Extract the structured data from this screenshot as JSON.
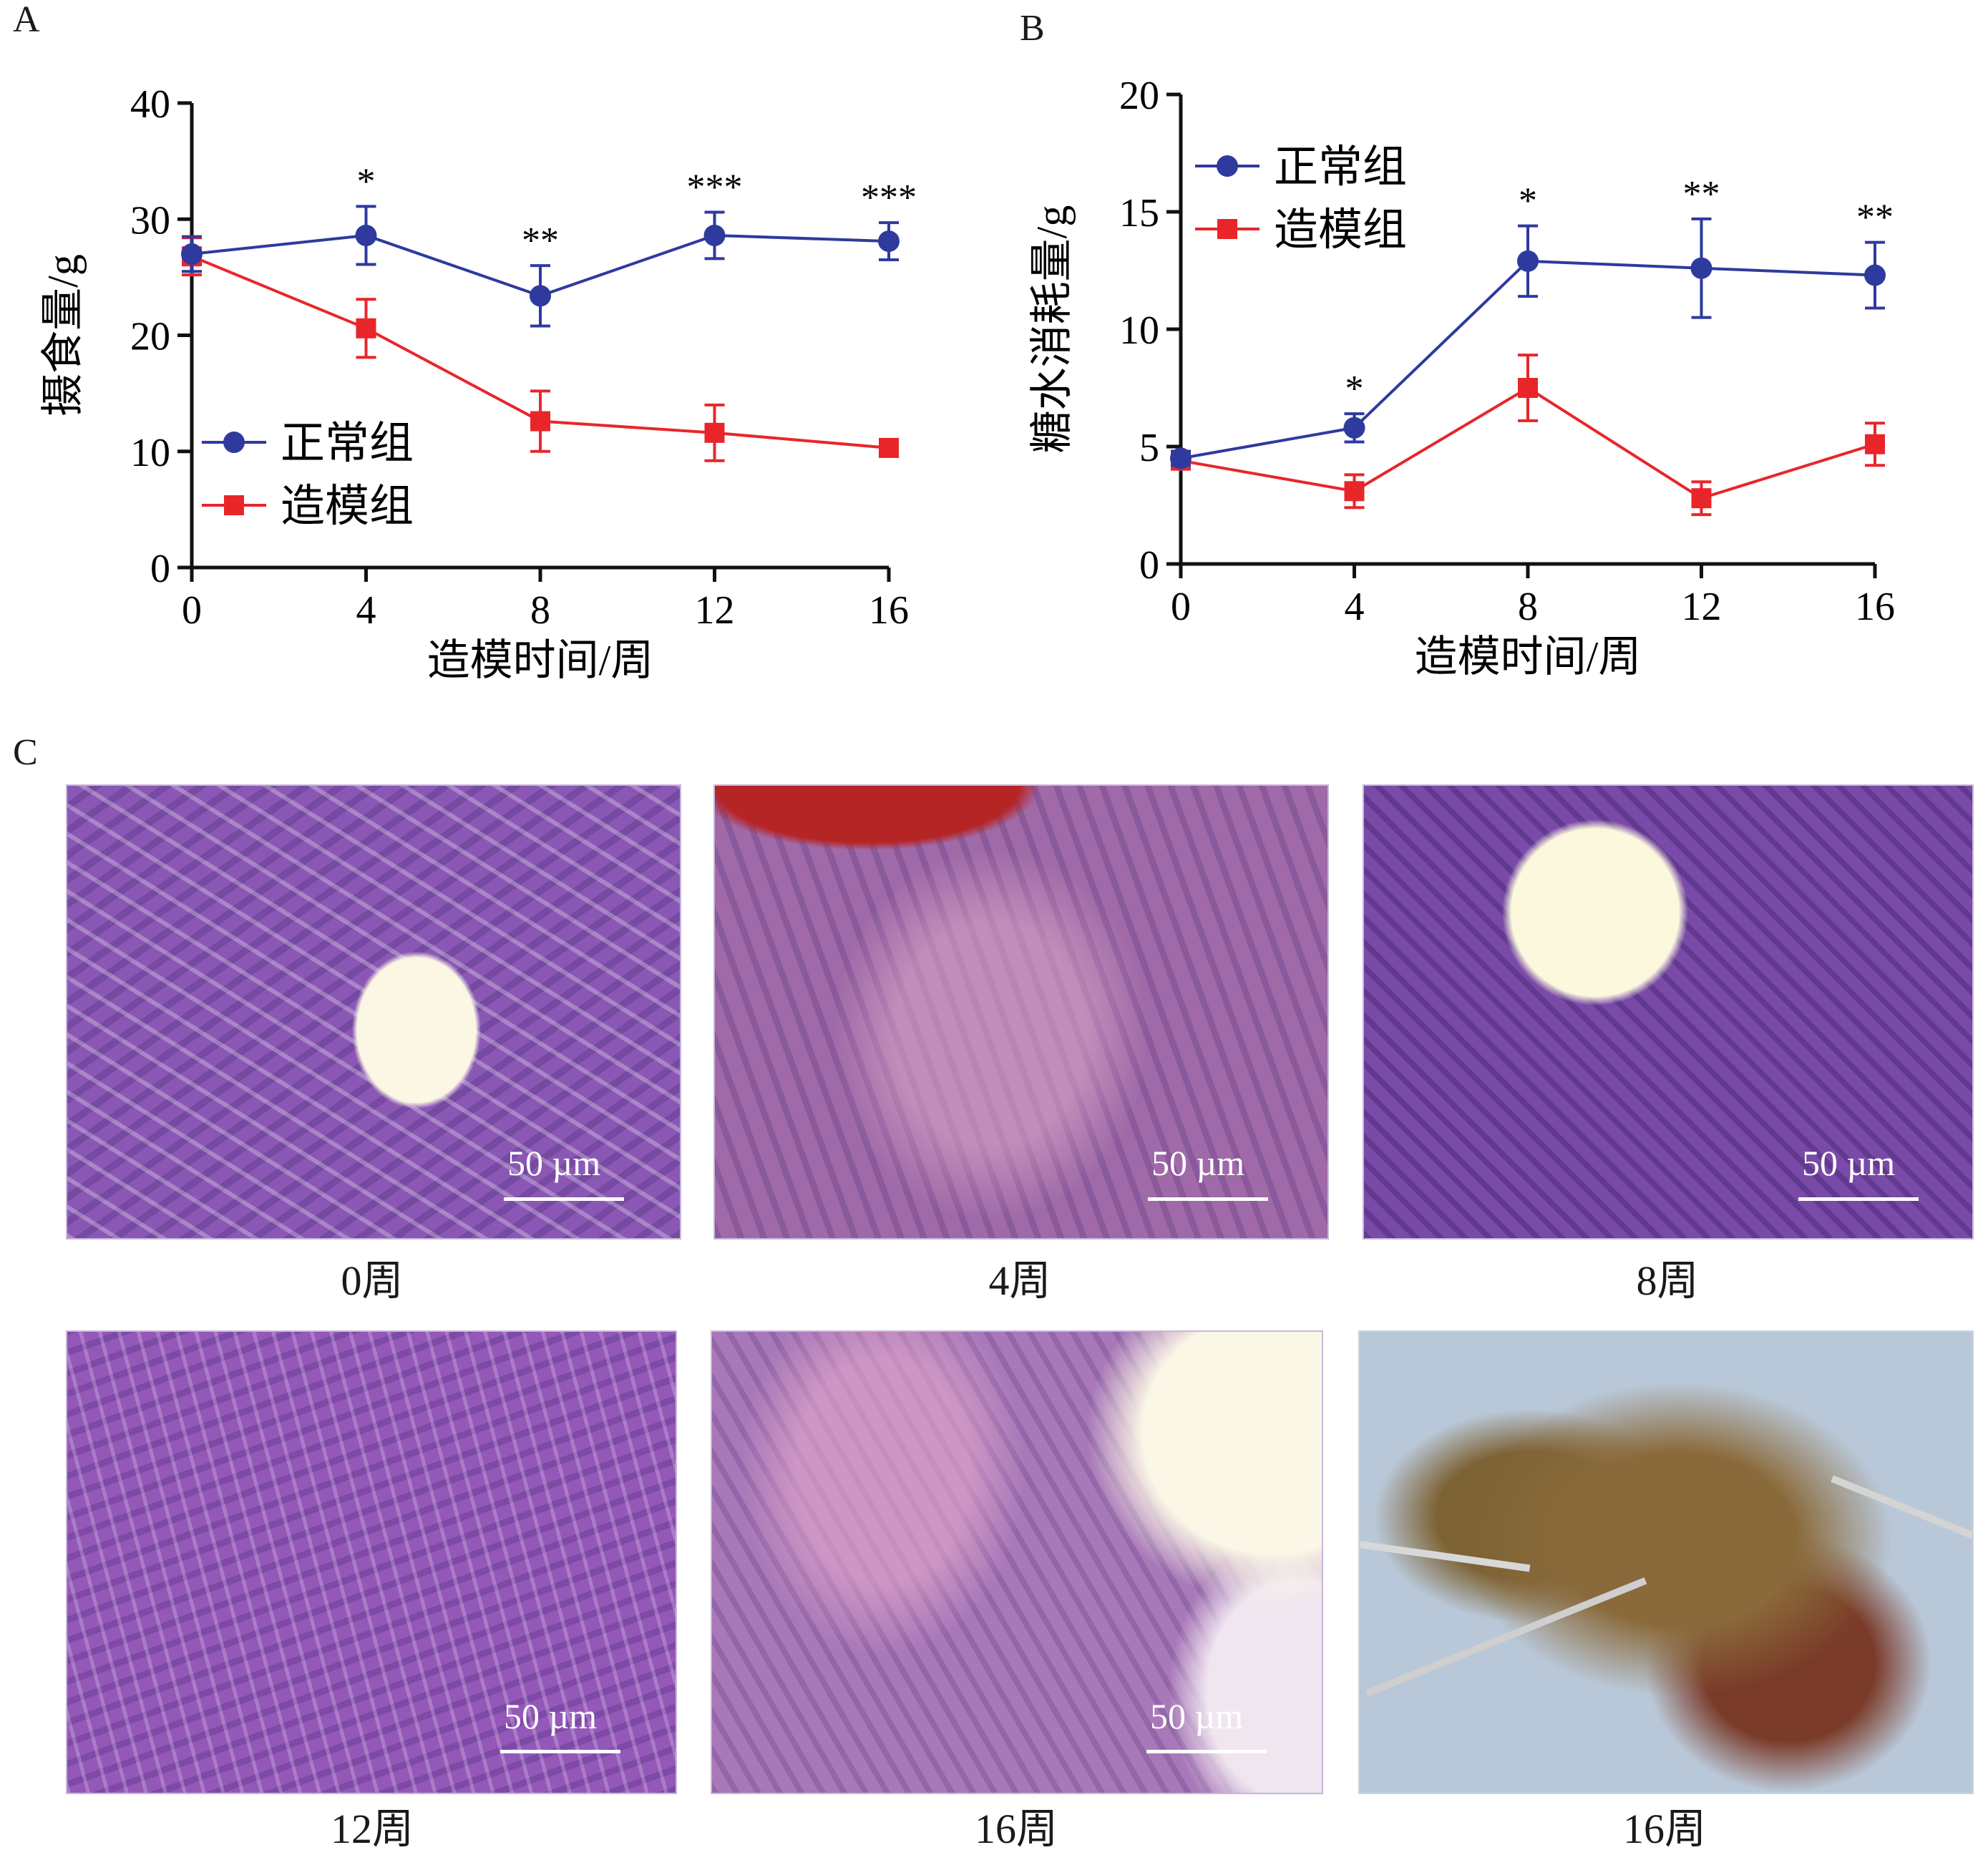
{
  "panels": {
    "a": "A",
    "b": "B",
    "c": "C"
  },
  "chart_data": [
    {
      "type": "line",
      "x": [
        0,
        4,
        8,
        12,
        16
      ],
      "xticks": [
        "0",
        "4",
        "8",
        "12",
        "16"
      ],
      "yticks": [
        "0",
        "10",
        "20",
        "30",
        "40"
      ],
      "xlabel": "造模时间/周",
      "ylabel": "摄食量/g",
      "xlim": [
        0,
        16
      ],
      "ylim": [
        0,
        40
      ],
      "series": [
        {
          "name": "正常组",
          "color": "#2e3a9e",
          "marker": "circle",
          "values": [
            27.0,
            28.6,
            23.4,
            28.6,
            28.1
          ],
          "errors": [
            1.5,
            2.5,
            2.6,
            2.0,
            1.6
          ]
        },
        {
          "name": "造模组",
          "color": "#e8262a",
          "marker": "square",
          "values": [
            26.8,
            20.6,
            12.6,
            11.6,
            10.3
          ],
          "errors": [
            1.6,
            2.5,
            2.6,
            2.4,
            0.6
          ]
        }
      ],
      "annotations": [
        "",
        "*",
        "**",
        "***",
        "***"
      ],
      "legend": "bottom-left"
    },
    {
      "type": "line",
      "x": [
        0,
        4,
        8,
        12,
        16
      ],
      "xticks": [
        "0",
        "4",
        "8",
        "12",
        "16"
      ],
      "yticks": [
        "0",
        "5",
        "10",
        "15",
        "20"
      ],
      "xlabel": "造模时间/周",
      "ylabel": "糖水消耗量/g",
      "xlim": [
        0,
        16
      ],
      "ylim": [
        0,
        20
      ],
      "series": [
        {
          "name": "正常组",
          "color": "#2e3a9e",
          "marker": "circle",
          "values": [
            4.5,
            5.8,
            12.9,
            12.6,
            12.3
          ],
          "errors": [
            0.3,
            0.6,
            1.5,
            2.1,
            1.4
          ]
        },
        {
          "name": "造模组",
          "color": "#e8262a",
          "marker": "square",
          "values": [
            4.4,
            3.1,
            7.5,
            2.8,
            5.1
          ],
          "errors": [
            0.3,
            0.7,
            1.4,
            0.7,
            0.9
          ]
        }
      ],
      "annotations": [
        "",
        "*",
        "*",
        "**",
        "**"
      ],
      "legend": "top-left"
    }
  ],
  "images": [
    {
      "caption": "0周",
      "scale": "50 µm"
    },
    {
      "caption": "4周",
      "scale": "50 µm"
    },
    {
      "caption": "8周",
      "scale": "50 µm"
    },
    {
      "caption": "12周",
      "scale": "50 µm"
    },
    {
      "caption": "16周",
      "scale": "50 µm"
    },
    {
      "caption": "16周",
      "scale": ""
    }
  ]
}
